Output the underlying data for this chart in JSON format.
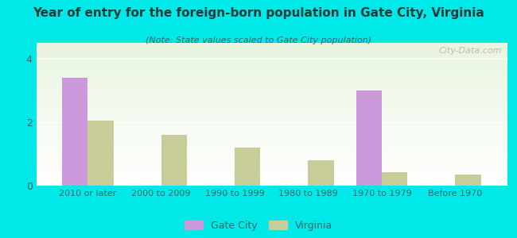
{
  "title": "Year of entry for the foreign-born population in Gate City, Virginia",
  "subtitle": "(Note: State values scaled to Gate City population)",
  "categories": [
    "2010 or later",
    "2000 to 2009",
    "1990 to 1999",
    "1980 to 1989",
    "1970 to 1979",
    "Before 1970"
  ],
  "gate_city": [
    3.4,
    0,
    0,
    0,
    3.0,
    0
  ],
  "virginia": [
    2.05,
    1.6,
    1.2,
    0.8,
    0.42,
    0.35
  ],
  "gate_city_color": "#cc99dd",
  "virginia_color": "#c8cc99",
  "background_outer": "#00e8e8",
  "background_inner_top": "#e8f5e0",
  "background_inner_bottom": "#ffffff",
  "ylim": [
    0,
    4.5
  ],
  "yticks": [
    0,
    2,
    4
  ],
  "bar_width": 0.35,
  "legend_gate_city": "Gate City",
  "legend_virginia": "Virginia",
  "watermark": "City-Data.com",
  "title_color": "#1a3a3a",
  "subtitle_color": "#336666",
  "tick_color": "#336666",
  "grid_color": "#ffffff"
}
